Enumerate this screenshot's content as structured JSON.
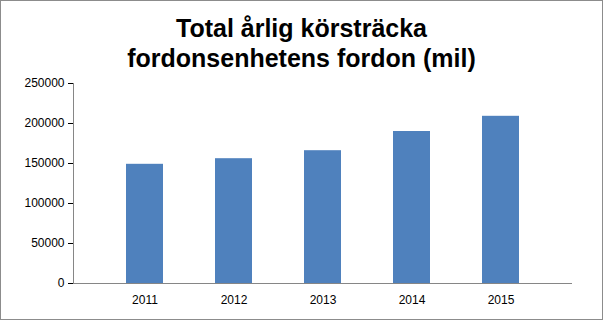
{
  "chart_data": {
    "type": "bar",
    "title": "Total årlig körsträcka fordonsenhetens fordon (mil)",
    "categories": [
      "2011",
      "2012",
      "2013",
      "2014",
      "2015"
    ],
    "values": [
      149000,
      156000,
      166000,
      190000,
      209000
    ],
    "color": "#4f81bd",
    "ylim": [
      0,
      250000
    ],
    "yticks": [
      0,
      50000,
      100000,
      150000,
      200000,
      250000
    ],
    "grid": false
  }
}
